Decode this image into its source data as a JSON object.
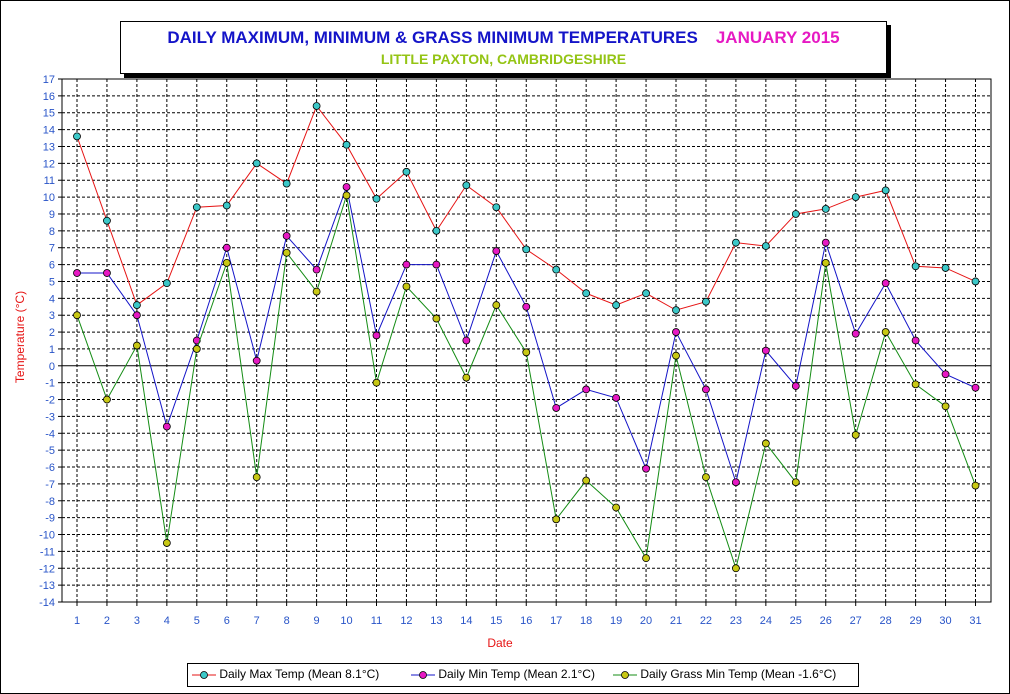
{
  "title": {
    "main": "DAILY MAXIMUM, MINIMUM & GRASS MINIMUM TEMPERATURES",
    "month": "JANUARY 2015",
    "subtitle": "LITTLE PAXTON, CAMBRIDGESHIRE"
  },
  "colors": {
    "title_main": "#1414c8",
    "title_month": "#e619c3",
    "subtitle": "#94c414",
    "axis_label": "#e61414",
    "tick_label": "#2854c8"
  },
  "chart_data": {
    "type": "line",
    "xlabel": "Date",
    "ylabel": "Temperature (°C)",
    "xlim": [
      1,
      31
    ],
    "ylim": [
      -14,
      17
    ],
    "grid": true,
    "legend_position": "bottom",
    "x": [
      1,
      2,
      3,
      4,
      5,
      6,
      7,
      8,
      9,
      10,
      11,
      12,
      13,
      14,
      15,
      16,
      17,
      18,
      19,
      20,
      21,
      22,
      23,
      24,
      25,
      26,
      27,
      28,
      29,
      30,
      31
    ],
    "series": [
      {
        "name": "Daily Max Temp (Mean 8.1°C)",
        "line_color": "#e61414",
        "marker_color": "#3cc8c8",
        "values": [
          13.6,
          8.6,
          3.6,
          4.9,
          9.4,
          9.5,
          12.0,
          10.8,
          15.4,
          13.1,
          9.9,
          11.5,
          8.0,
          10.7,
          9.4,
          6.9,
          5.7,
          4.3,
          3.6,
          4.3,
          3.3,
          3.8,
          7.3,
          7.1,
          9.0,
          9.3,
          10.0,
          10.4,
          5.9,
          5.8,
          5.0
        ]
      },
      {
        "name": "Daily Min Temp (Mean 2.1°C)",
        "line_color": "#1414c8",
        "marker_color": "#e619c3",
        "values": [
          5.5,
          5.5,
          3.0,
          -3.6,
          1.5,
          7.0,
          0.3,
          7.7,
          5.7,
          10.6,
          1.8,
          6.0,
          6.0,
          1.5,
          6.8,
          3.5,
          -2.5,
          -1.4,
          -1.9,
          -6.1,
          2.0,
          -1.4,
          -6.9,
          0.9,
          -1.2,
          7.3,
          1.9,
          4.9,
          1.5,
          -0.5,
          -1.3
        ]
      },
      {
        "name": "Daily Grass Min Temp (Mean -1.6°C)",
        "line_color": "#148c14",
        "marker_color": "#c8c814",
        "values": [
          3.0,
          -2.0,
          1.2,
          -10.5,
          1.0,
          6.1,
          -6.6,
          6.7,
          4.4,
          10.1,
          -1.0,
          4.7,
          2.8,
          -0.7,
          3.6,
          0.8,
          -9.1,
          -6.8,
          -8.4,
          -11.4,
          0.6,
          -6.6,
          -12.0,
          -4.6,
          -6.9,
          6.1,
          -4.1,
          2.0,
          -1.1,
          -2.4,
          -7.1
        ]
      }
    ]
  }
}
